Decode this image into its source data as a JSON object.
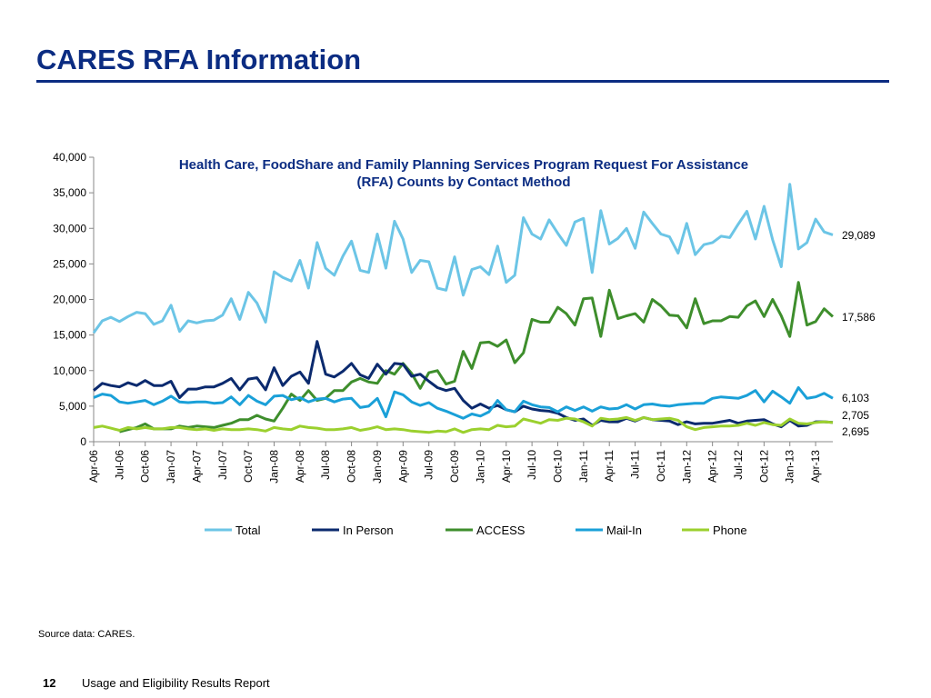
{
  "slide": {
    "title": "CARES RFA Information",
    "source": "Source data: CARES.",
    "page_number": "12",
    "footer": "Usage and Eligibility Results Report"
  },
  "colors": {
    "title": "#0b2c82",
    "Total": "#6cc5e6",
    "In Person": "#0b2a6e",
    "ACCESS": "#3e8e2c",
    "Mail-In": "#1aa0d8",
    "Phone": "#9bd02e"
  },
  "chart_data": {
    "type": "line",
    "title_line1": "Health Care, FoodShare and Family Planning Services Program Request For Assistance",
    "title_line2": "(RFA) Counts by Contact Method",
    "x_start": "Apr-06",
    "x_tick_labels": [
      "Apr-06",
      "Jul-06",
      "Oct-06",
      "Jan-07",
      "Apr-07",
      "Jul-07",
      "Oct-07",
      "Jan-08",
      "Apr-08",
      "Jul-08",
      "Oct-08",
      "Jan-09",
      "Apr-09",
      "Jul-09",
      "Oct-09",
      "Jan-10",
      "Apr-10",
      "Jul-10",
      "Oct-10",
      "Jan-11",
      "Apr-11",
      "Jul-11",
      "Oct-11",
      "Jan-12",
      "Apr-12",
      "Jul-12",
      "Oct-12",
      "Jan-13",
      "Apr-13"
    ],
    "ylim": [
      0,
      40000
    ],
    "y_ticks": [
      "0",
      "5,000",
      "10,000",
      "15,000",
      "20,000",
      "25,000",
      "30,000",
      "35,000",
      "40,000"
    ],
    "grid": false,
    "legend_position": "bottom",
    "series": [
      {
        "name": "Total",
        "end_label": "29,089",
        "values": [
          15300,
          17000,
          17500,
          16900,
          17600,
          18200,
          18000,
          16500,
          17000,
          19200,
          15500,
          17000,
          16700,
          17000,
          17100,
          17800,
          20100,
          17200,
          21000,
          19500,
          16800,
          23900,
          23100,
          22600,
          25500,
          21600,
          28000,
          24400,
          23400,
          26100,
          28200,
          24100,
          23800,
          29200,
          24400,
          31000,
          28500,
          23800,
          25500,
          25300,
          21600,
          21300,
          26000,
          20600,
          24200,
          24600,
          23500,
          27500,
          22400,
          23400,
          31500,
          29200,
          28500,
          31200,
          29300,
          27600,
          30900,
          31400,
          23800,
          32500,
          27800,
          28600,
          30000,
          27200,
          32300,
          30700,
          29200,
          28800,
          26500,
          30700,
          26300,
          27700,
          28000,
          28900,
          28700,
          30600,
          32400,
          28500,
          33100,
          28400,
          24600,
          36200,
          27100,
          28000,
          31300,
          29500,
          29089
        ]
      },
      {
        "name": "In Person",
        "end_label": "2,705",
        "values": [
          7200,
          8200,
          7900,
          7700,
          8300,
          7900,
          8600,
          7900,
          7900,
          8500,
          6200,
          7400,
          7400,
          7700,
          7700,
          8200,
          8900,
          7300,
          8800,
          9000,
          7300,
          10400,
          7900,
          9200,
          9800,
          8200,
          14100,
          9500,
          9100,
          9900,
          11000,
          9400,
          8900,
          10900,
          9500,
          11000,
          10900,
          9200,
          9500,
          8500,
          7600,
          7200,
          7500,
          5800,
          4700,
          5300,
          4700,
          5100,
          4500,
          4200,
          5000,
          4600,
          4400,
          4300,
          4000,
          3400,
          3000,
          3200,
          2300,
          3000,
          2800,
          2800,
          3300,
          2900,
          3400,
          3100,
          3000,
          2900,
          2400,
          2800,
          2500,
          2600,
          2600,
          2800,
          3000,
          2600,
          2900,
          3000,
          3100,
          2500,
          2100,
          3000,
          2200,
          2300,
          2800,
          2800,
          2705
        ]
      },
      {
        "name": "ACCESS",
        "end_label": "17,586",
        "values": [
          null,
          null,
          null,
          1400,
          1700,
          2000,
          2500,
          1800,
          1800,
          1800,
          2200,
          2000,
          2200,
          2100,
          2000,
          2300,
          2600,
          3100,
          3100,
          3700,
          3200,
          2900,
          4700,
          6700,
          5800,
          7200,
          5800,
          6100,
          7200,
          7200,
          8400,
          8900,
          8400,
          8200,
          10000,
          9500,
          11000,
          9600,
          7500,
          9700,
          10000,
          8100,
          8500,
          12700,
          10300,
          13900,
          14000,
          13400,
          14300,
          11100,
          12500,
          17200,
          16800,
          16800,
          18900,
          18000,
          16400,
          20100,
          20200,
          14800,
          21300,
          17300,
          17700,
          18000,
          16800,
          20000,
          19100,
          17800,
          17700,
          16000,
          20100,
          16600,
          17000,
          17000,
          17600,
          17500,
          19100,
          19800,
          17600,
          20000,
          17700,
          14800,
          22400,
          16400,
          16900,
          18700,
          17586
        ]
      },
      {
        "name": "Mail-In",
        "end_label": "6,103",
        "values": [
          6200,
          6700,
          6500,
          5600,
          5400,
          5600,
          5800,
          5200,
          5700,
          6400,
          5600,
          5500,
          5600,
          5600,
          5400,
          5500,
          6300,
          5200,
          6500,
          5700,
          5200,
          6400,
          6500,
          5900,
          6200,
          5600,
          6000,
          6100,
          5600,
          6000,
          6100,
          4800,
          5000,
          6100,
          3500,
          7000,
          6600,
          5600,
          5100,
          5500,
          4700,
          4300,
          3800,
          3300,
          3900,
          3600,
          4200,
          5800,
          4500,
          4200,
          5700,
          5200,
          4900,
          4800,
          4200,
          4900,
          4400,
          4900,
          4300,
          4900,
          4600,
          4700,
          5200,
          4600,
          5200,
          5300,
          5100,
          5000,
          5200,
          5300,
          5400,
          5400,
          6100,
          6300,
          6200,
          6100,
          6500,
          7200,
          5600,
          7100,
          6300,
          5400,
          7600,
          6100,
          6300,
          6800,
          6103
        ]
      },
      {
        "name": "Phone",
        "end_label": "2,695",
        "values": [
          2000,
          2200,
          1900,
          1600,
          2000,
          1800,
          2000,
          1800,
          1800,
          2000,
          2000,
          1800,
          1700,
          1800,
          1600,
          1800,
          1700,
          1700,
          1800,
          1700,
          1500,
          2000,
          1800,
          1700,
          2200,
          2000,
          1900,
          1700,
          1700,
          1800,
          2000,
          1600,
          1800,
          2100,
          1700,
          1800,
          1700,
          1500,
          1400,
          1300,
          1500,
          1400,
          1800,
          1300,
          1700,
          1800,
          1700,
          2300,
          2100,
          2200,
          3200,
          2900,
          2600,
          3100,
          3000,
          3300,
          3200,
          2800,
          2200,
          3300,
          3100,
          3200,
          3400,
          3000,
          3400,
          3100,
          3200,
          3300,
          3000,
          2100,
          1700,
          2000,
          2100,
          2200,
          2200,
          2300,
          2600,
          2300,
          2700,
          2400,
          2300,
          3200,
          2600,
          2500,
          2700,
          2800,
          2695
        ]
      }
    ]
  }
}
